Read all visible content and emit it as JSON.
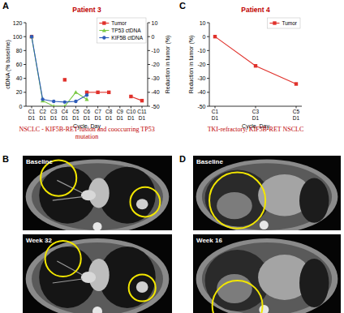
{
  "chart_data": [
    {
      "type": "line",
      "panel": "A",
      "title": "Patient 3",
      "categories": [
        "C1 D1",
        "C2 D1",
        "C3 D1",
        "C4 D1",
        "C5 D1",
        "C6 D1",
        "C7 D1",
        "C8 D1",
        "C9 D1",
        "C10 D1",
        "C11 D1"
      ],
      "xlabel": "Cycle, Day",
      "ylabel": "ctDNA (% baseline)",
      "ylim": [
        0,
        120
      ],
      "yticks": [
        0,
        20,
        40,
        60,
        80,
        100,
        120
      ],
      "y2label": "Reduction in tumor (%)",
      "y2lim": [
        -50,
        10
      ],
      "y2ticks": [
        10,
        0,
        -10,
        -20,
        -30,
        -40,
        -50
      ],
      "legend": "upper right",
      "annotation": "NSCLC - KIF5B-RET fusion and cooccurring TP53 mutation",
      "series": [
        {
          "name": "Tumor",
          "color": "#e0312b",
          "marker": "square",
          "axis": "y2",
          "values": [
            0,
            null,
            null,
            -31,
            null,
            -40,
            -40,
            -40,
            null,
            -43,
            -46
          ]
        },
        {
          "name": "TP53 ctDNA",
          "color": "#7ac943",
          "marker": "triangle",
          "values": [
            100,
            8,
            0,
            0,
            20,
            10,
            null,
            null,
            null,
            null,
            null
          ]
        },
        {
          "name": "KIF5B ctDNA",
          "color": "#2e5cb8",
          "marker": "circle",
          "values": [
            100,
            10,
            7,
            6,
            7,
            16,
            null,
            null,
            null,
            null,
            null
          ]
        }
      ]
    },
    {
      "type": "line",
      "panel": "C",
      "title": "Patient 4",
      "categories": [
        "C1 D1",
        "C3 D1",
        "C5 D1"
      ],
      "xlabel": "Cycle, Day",
      "ylabel": "Reduction in tumor (%)",
      "ylim": [
        -50,
        10
      ],
      "yticks": [
        10,
        0,
        -10,
        -20,
        -30,
        -40,
        -50
      ],
      "legend": "upper right",
      "annotation": "TKI-refractory, KIF5B-RET NSCLC",
      "series": [
        {
          "name": "Tumor",
          "color": "#e0312b",
          "marker": "square",
          "values": [
            0,
            -21,
            -34
          ]
        }
      ]
    }
  ],
  "images": [
    {
      "panel": "B",
      "frames": [
        "Baseline",
        "Week 32"
      ]
    },
    {
      "panel": "D",
      "frames": [
        "Baseline",
        "Week 16"
      ]
    }
  ]
}
